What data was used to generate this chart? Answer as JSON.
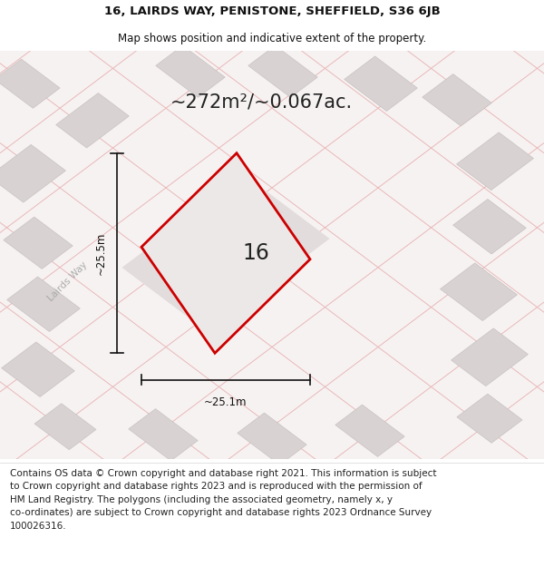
{
  "title_line1": "16, LAIRDS WAY, PENISTONE, SHEFFIELD, S36 6JB",
  "title_line2": "Map shows position and indicative extent of the property.",
  "area_text": "~272m²/~0.067ac.",
  "label_16": "16",
  "label_height": "~25.5m",
  "label_width": "~25.1m",
  "road_label": "Lairds Way",
  "footer_lines": [
    "Contains OS data © Crown copyright and database right 2021. This information is subject",
    "to Crown copyright and database rights 2023 and is reproduced with the permission of",
    "HM Land Registry. The polygons (including the associated geometry, namely x, y",
    "co-ordinates) are subject to Crown copyright and database rights 2023 Ordnance Survey",
    "100026316."
  ],
  "map_bg": "#f7f2f2",
  "street_color": "#e8b8b8",
  "block_color": "#d8d2d2",
  "block_edge": "#c8c2c2",
  "property_color": "#cc0000",
  "property_fill": "#ede8e8",
  "dim_color": "#111111",
  "road_label_color": "#aaaaaa",
  "title_fontsize": 9.5,
  "subtitle_fontsize": 8.5,
  "area_fontsize": 15,
  "label_fontsize": 17,
  "dim_fontsize": 8.5,
  "footer_fontsize": 7.5,
  "street_lw": 0.7,
  "dim_lw": 1.2
}
